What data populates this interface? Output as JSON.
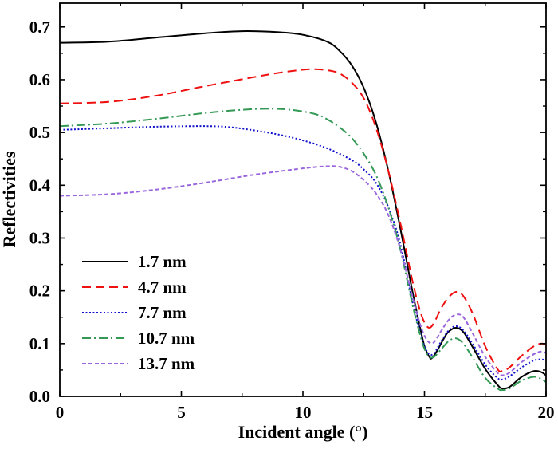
{
  "chart_data": {
    "type": "line",
    "xlabel": "Incident angle (°)",
    "ylabel": "Reflectivities",
    "xlim": [
      0,
      20
    ],
    "ylim": [
      0,
      0.75
    ],
    "xticks": [
      0,
      5,
      10,
      15,
      20
    ],
    "xtick_labels": [
      "0",
      "5",
      "10",
      "15",
      "20"
    ],
    "yticks": [
      0,
      0.1,
      0.2,
      0.3,
      0.4,
      0.5,
      0.6,
      0.7
    ],
    "ytick_labels": [
      "0.0",
      "0.1",
      "0.2",
      "0.3",
      "0.4",
      "0.5",
      "0.6",
      "0.7"
    ],
    "grid": false,
    "legend_position": "bottom-left",
    "series": [
      {
        "name": "1.7 nm",
        "color": "#000000",
        "dash": "solid",
        "x": [
          0,
          2,
          4,
          6,
          7.5,
          9,
          10,
          11,
          11.5,
          12,
          12.5,
          13,
          13.5,
          14,
          14.5,
          14.8,
          15,
          15.2,
          15.3,
          15.5,
          15.8,
          16,
          16.3,
          16.6,
          17,
          17.5,
          18,
          18.2,
          18.5,
          19,
          19.5,
          19.8,
          20
        ],
        "y": [
          0.67,
          0.672,
          0.68,
          0.688,
          0.692,
          0.69,
          0.685,
          0.672,
          0.655,
          0.628,
          0.585,
          0.52,
          0.43,
          0.32,
          0.2,
          0.135,
          0.095,
          0.075,
          0.072,
          0.085,
          0.11,
          0.123,
          0.13,
          0.122,
          0.092,
          0.052,
          0.022,
          0.015,
          0.018,
          0.037,
          0.048,
          0.046,
          0.04
        ]
      },
      {
        "name": "4.7 nm",
        "color": "#ee1111",
        "dash": "dashed",
        "x": [
          0,
          2,
          4,
          6,
          8,
          9,
          10,
          10.5,
          11,
          11.5,
          12,
          12.5,
          13,
          13.5,
          14,
          14.5,
          14.8,
          15,
          15.2,
          15.4,
          15.7,
          16,
          16.3,
          16.6,
          17,
          17.5,
          18,
          18.2,
          18.5,
          19,
          19.5,
          19.8,
          20
        ],
        "y": [
          0.555,
          0.558,
          0.57,
          0.588,
          0.605,
          0.613,
          0.619,
          0.62,
          0.618,
          0.612,
          0.595,
          0.565,
          0.51,
          0.43,
          0.33,
          0.22,
          0.165,
          0.14,
          0.13,
          0.14,
          0.168,
          0.188,
          0.198,
          0.19,
          0.155,
          0.095,
          0.052,
          0.048,
          0.055,
          0.077,
          0.095,
          0.1,
          0.098
        ]
      },
      {
        "name": "7.7 nm",
        "color": "#1111cc",
        "dash": "dotted",
        "x": [
          0,
          2,
          4,
          6,
          7,
          8,
          9,
          10,
          11,
          12,
          12.5,
          13,
          13.5,
          14,
          14.5,
          14.8,
          15,
          15.2,
          15.4,
          15.7,
          16,
          16.3,
          16.6,
          17,
          17.5,
          18,
          18.2,
          18.5,
          19,
          19.5,
          19.8,
          20
        ],
        "y": [
          0.505,
          0.508,
          0.511,
          0.512,
          0.51,
          0.504,
          0.496,
          0.485,
          0.47,
          0.448,
          0.43,
          0.405,
          0.36,
          0.29,
          0.18,
          0.125,
          0.095,
          0.08,
          0.082,
          0.105,
          0.125,
          0.133,
          0.125,
          0.098,
          0.06,
          0.035,
          0.032,
          0.038,
          0.055,
          0.068,
          0.07,
          0.068
        ]
      },
      {
        "name": "10.7 nm",
        "color": "#339955",
        "dash": "dash-dot",
        "x": [
          0,
          2,
          4,
          6,
          7.5,
          8.5,
          9.5,
          10.5,
          11,
          11.5,
          12,
          12.5,
          13,
          13.5,
          14,
          14.5,
          14.8,
          15,
          15.2,
          15.4,
          15.7,
          16,
          16.3,
          16.6,
          17,
          17.5,
          18,
          18.2,
          18.5,
          19,
          19.5,
          19.8,
          20
        ],
        "y": [
          0.512,
          0.517,
          0.526,
          0.537,
          0.543,
          0.545,
          0.543,
          0.535,
          0.525,
          0.51,
          0.49,
          0.46,
          0.42,
          0.36,
          0.28,
          0.175,
          0.12,
          0.09,
          0.075,
          0.075,
          0.09,
          0.105,
          0.11,
          0.1,
          0.072,
          0.035,
          0.015,
          0.012,
          0.015,
          0.03,
          0.037,
          0.033,
          0.027
        ]
      },
      {
        "name": "13.7 nm",
        "color": "#9966dd",
        "dash": "short-dash",
        "x": [
          0,
          2,
          4,
          6,
          8,
          10,
          11,
          11.5,
          12,
          12.5,
          13,
          13.5,
          14,
          14.5,
          14.8,
          15,
          15.2,
          15.4,
          15.7,
          16,
          16.3,
          16.6,
          17,
          17.5,
          18,
          18.2,
          18.5,
          19,
          19.5,
          19.8,
          20
        ],
        "y": [
          0.38,
          0.383,
          0.392,
          0.405,
          0.42,
          0.432,
          0.436,
          0.435,
          0.427,
          0.41,
          0.385,
          0.345,
          0.28,
          0.19,
          0.14,
          0.115,
          0.102,
          0.103,
          0.125,
          0.145,
          0.155,
          0.15,
          0.118,
          0.075,
          0.045,
          0.04,
          0.045,
          0.065,
          0.08,
          0.085,
          0.082
        ]
      }
    ]
  }
}
